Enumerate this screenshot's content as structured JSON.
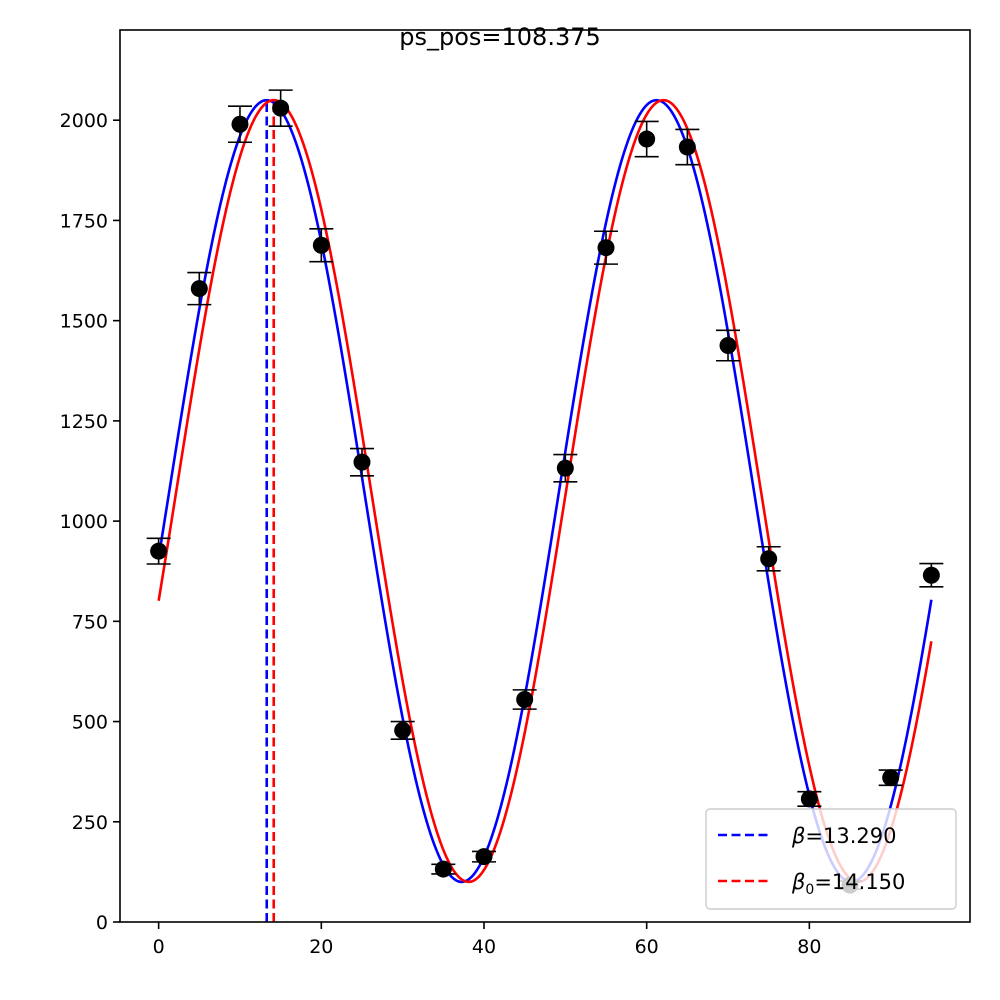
{
  "chart_data": {
    "type": "scatter",
    "title": "ps_pos=108.375",
    "xlabel": "",
    "ylabel": "",
    "xlim": [
      -4.75,
      99.75
    ],
    "ylim": [
      0,
      2225
    ],
    "xticks": [
      0,
      20,
      40,
      60,
      80
    ],
    "yticks": [
      0,
      250,
      500,
      750,
      1000,
      1250,
      1500,
      1750,
      2000
    ],
    "grid": false,
    "legend_position": "bottom-right",
    "points": {
      "x": [
        0,
        5,
        10,
        15,
        20,
        25,
        30,
        35,
        40,
        45,
        50,
        55,
        60,
        65,
        70,
        75,
        80,
        85,
        90,
        95
      ],
      "y": [
        925,
        1580,
        1990,
        2030,
        1688,
        1147,
        478,
        132,
        163,
        555,
        1132,
        1682,
        1953,
        1933,
        1438,
        906,
        307,
        92,
        360,
        865
      ],
      "err": [
        32,
        40,
        45,
        45,
        41,
        34,
        22,
        12,
        13,
        24,
        34,
        41,
        44,
        44,
        38,
        30,
        18,
        10,
        19,
        29
      ],
      "color": "#000000"
    },
    "series": [
      {
        "name": "β=13.290",
        "style": "solid",
        "color": "#0000ff",
        "amplitude": 975,
        "offset": 1075,
        "period": 47.92,
        "peak_x": 13.29,
        "x_range": [
          0,
          95
        ]
      },
      {
        "name": "β0=14.150",
        "style": "solid",
        "color": "#ff0000",
        "amplitude": 975,
        "offset": 1075,
        "period": 47.92,
        "peak_x": 14.15,
        "x_range": [
          0,
          95
        ]
      }
    ],
    "vlines": [
      {
        "x": 13.29,
        "color": "#0000ff",
        "style": "dashed"
      },
      {
        "x": 14.15,
        "color": "#ff0000",
        "style": "dashed"
      }
    ],
    "legend": [
      {
        "symbol": "β",
        "subscript": "",
        "value": "=13.290",
        "color": "#0000ff"
      },
      {
        "symbol": "β",
        "subscript": "0",
        "value": "=14.150",
        "color": "#ff0000"
      }
    ]
  }
}
